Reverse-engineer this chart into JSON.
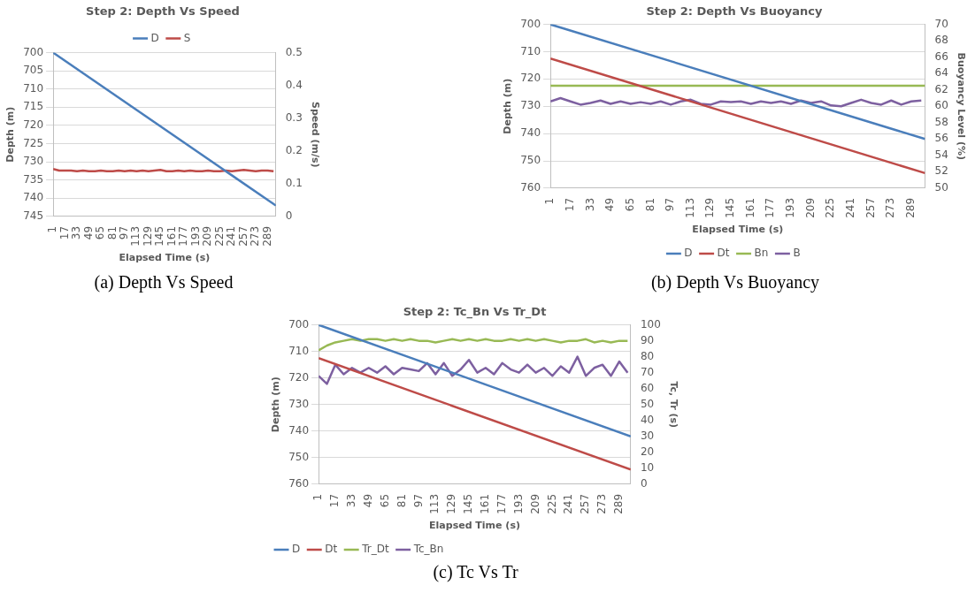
{
  "chart_data": [
    {
      "type": "line",
      "title": "Step 2: Depth Vs Speed",
      "xlabel": "Elapsed Time (s)",
      "ylabel": "Depth (m)",
      "y2label": "Speed (m/s)",
      "annotations": [
        "(a) Depth Vs Speed"
      ],
      "xlim": [
        1,
        300
      ],
      "xticks": [
        1,
        17,
        33,
        49,
        65,
        81,
        97,
        113,
        129,
        145,
        161,
        177,
        193,
        209,
        225,
        241,
        257,
        273,
        289
      ],
      "ylim": [
        745,
        700
      ],
      "yticks": [
        700,
        705,
        710,
        715,
        720,
        725,
        730,
        735,
        740,
        745
      ],
      "y2lim": [
        0,
        0.5
      ],
      "y2ticks": [
        0,
        0.1,
        0.2,
        0.3,
        0.4,
        0.5
      ],
      "grid": "y",
      "legend": "top",
      "marker": "none",
      "line_style": "solid",
      "series": [
        {
          "name": "D",
          "color": "#4a7ebb",
          "x": [
            1,
            300
          ],
          "values": [
            700,
            742
          ]
        },
        {
          "name": "S",
          "color": "#be4b48",
          "axis": "y2",
          "x": [
            1,
            9,
            17,
            25,
            33,
            41,
            49,
            57,
            65,
            73,
            81,
            89,
            97,
            105,
            113,
            121,
            129,
            137,
            145,
            153,
            161,
            169,
            177,
            185,
            193,
            201,
            209,
            217,
            225,
            233,
            241,
            249,
            257,
            265,
            273,
            281,
            289,
            297
          ],
          "values": [
            0.145,
            0.14,
            0.14,
            0.14,
            0.138,
            0.14,
            0.138,
            0.138,
            0.14,
            0.138,
            0.138,
            0.14,
            0.138,
            0.14,
            0.138,
            0.14,
            0.138,
            0.14,
            0.142,
            0.138,
            0.138,
            0.14,
            0.138,
            0.14,
            0.138,
            0.138,
            0.14,
            0.138,
            0.138,
            0.14,
            0.138,
            0.14,
            0.142,
            0.14,
            0.138,
            0.14,
            0.14,
            0.138
          ]
        }
      ]
    },
    {
      "type": "line",
      "title": "Step 2: Depth Vs Buoyancy",
      "xlabel": "Elapsed Time (s)",
      "ylabel": "Depth (m)",
      "y2label": "Buoyancy Level (%)",
      "annotations": [
        "(b) Depth Vs Buoyancy"
      ],
      "xlim": [
        1,
        300
      ],
      "xticks": [
        1,
        17,
        33,
        49,
        65,
        81,
        97,
        113,
        129,
        145,
        161,
        177,
        193,
        209,
        225,
        241,
        257,
        273,
        289
      ],
      "ylim": [
        760,
        700
      ],
      "yticks": [
        700,
        710,
        720,
        730,
        740,
        750,
        760
      ],
      "y2lim": [
        50,
        70
      ],
      "y2ticks": [
        50,
        52,
        54,
        56,
        58,
        60,
        62,
        64,
        66,
        68,
        70
      ],
      "grid": "y",
      "legend": "bottom",
      "marker": "none",
      "line_style": "solid",
      "series": [
        {
          "name": "D",
          "color": "#4a7ebb",
          "x": [
            1,
            300
          ],
          "values": [
            700,
            742
          ]
        },
        {
          "name": "Dt",
          "color": "#be4b48",
          "x": [
            1,
            300
          ],
          "values": [
            712.5,
            754.5
          ]
        },
        {
          "name": "Bn",
          "color": "#98b954",
          "axis": "y2",
          "x": [
            1,
            300
          ],
          "values": [
            62.5,
            62.5
          ]
        },
        {
          "name": "B",
          "color": "#7d60a0",
          "axis": "y2",
          "x": [
            1,
            9,
            17,
            25,
            33,
            41,
            49,
            57,
            65,
            73,
            81,
            89,
            97,
            105,
            113,
            121,
            129,
            137,
            145,
            153,
            161,
            169,
            177,
            185,
            193,
            201,
            209,
            217,
            225,
            233,
            241,
            249,
            257,
            265,
            273,
            281,
            289,
            297
          ],
          "values": [
            60.6,
            61.0,
            60.6,
            60.2,
            60.4,
            60.7,
            60.3,
            60.6,
            60.3,
            60.5,
            60.3,
            60.6,
            60.2,
            60.6,
            60.8,
            60.3,
            60.2,
            60.6,
            60.5,
            60.6,
            60.3,
            60.6,
            60.4,
            60.6,
            60.3,
            60.7,
            60.4,
            60.6,
            60.1,
            60.0,
            60.4,
            60.8,
            60.4,
            60.2,
            60.7,
            60.2,
            60.6,
            60.7
          ]
        }
      ]
    },
    {
      "type": "line",
      "title": "Step 2: Tc_Bn Vs Tr_Dt",
      "xlabel": "Elapsed Time (s)",
      "ylabel": "Depth (m)",
      "y2label": "Tc, Tr (s)",
      "annotations": [
        "(c) Tc Vs Tr"
      ],
      "xlim": [
        1,
        300
      ],
      "xticks": [
        1,
        17,
        33,
        49,
        65,
        81,
        97,
        113,
        129,
        145,
        161,
        177,
        193,
        209,
        225,
        241,
        257,
        273,
        289
      ],
      "ylim": [
        760,
        700
      ],
      "yticks": [
        700,
        710,
        720,
        730,
        740,
        750,
        760
      ],
      "y2lim": [
        0,
        100
      ],
      "y2ticks": [
        0,
        10,
        20,
        30,
        40,
        50,
        60,
        70,
        80,
        90,
        100
      ],
      "grid": "y",
      "legend": "bottom left",
      "marker": "none",
      "line_style": "solid",
      "series": [
        {
          "name": "D",
          "color": "#4a7ebb",
          "x": [
            1,
            300
          ],
          "values": [
            700,
            742
          ]
        },
        {
          "name": "Dt",
          "color": "#be4b48",
          "x": [
            1,
            300
          ],
          "values": [
            712.5,
            754.5
          ]
        },
        {
          "name": "Tr_Dt",
          "color": "#98b954",
          "axis": "y2",
          "x": [
            1,
            9,
            17,
            25,
            33,
            41,
            49,
            57,
            65,
            73,
            81,
            89,
            97,
            105,
            113,
            121,
            129,
            137,
            145,
            153,
            161,
            169,
            177,
            185,
            193,
            201,
            209,
            217,
            225,
            233,
            241,
            249,
            257,
            265,
            273,
            281,
            289,
            297
          ],
          "values": [
            84,
            87,
            89,
            90,
            91,
            90,
            91,
            91,
            90,
            91,
            90,
            91,
            90,
            90,
            89,
            90,
            91,
            90,
            91,
            90,
            91,
            90,
            90,
            91,
            90,
            91,
            90,
            91,
            90,
            89,
            90,
            90,
            91,
            89,
            90,
            89,
            90,
            90
          ]
        },
        {
          "name": "Tc_Bn",
          "color": "#7d60a0",
          "axis": "y2",
          "x": [
            1,
            9,
            17,
            25,
            33,
            41,
            49,
            57,
            65,
            73,
            81,
            89,
            97,
            105,
            113,
            121,
            129,
            137,
            145,
            153,
            161,
            169,
            177,
            185,
            193,
            201,
            209,
            217,
            225,
            233,
            241,
            249,
            257,
            265,
            273,
            281,
            289,
            297
          ],
          "values": [
            68,
            63,
            75,
            69,
            73,
            70,
            73,
            70,
            74,
            69,
            73,
            72,
            71,
            76,
            69,
            76,
            68,
            72,
            78,
            70,
            73,
            69,
            76,
            72,
            70,
            75,
            70,
            73,
            68,
            74,
            70,
            80,
            68,
            73,
            75,
            68,
            77,
            70
          ]
        }
      ]
    }
  ]
}
